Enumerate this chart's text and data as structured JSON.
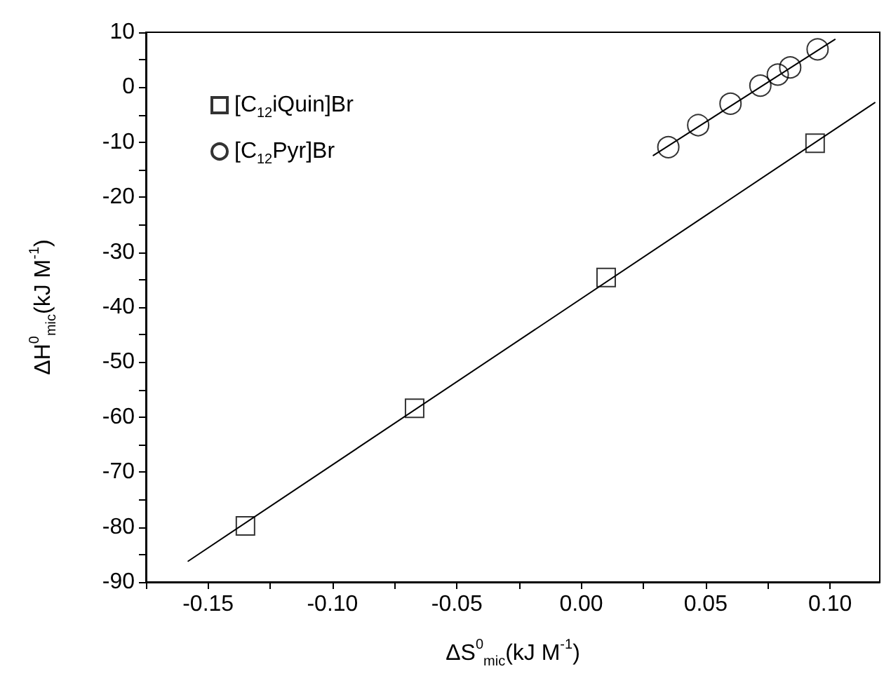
{
  "chart_data": {
    "type": "scatter",
    "xlabel": "ΔS$^{0}$$_{mic}$(kJ M$^{-1}$)",
    "ylabel": "ΔH$^{0}$$_{mic}$(kJ M$^{-1}$)",
    "xlim": [
      -0.175,
      0.12
    ],
    "xticks": [
      {
        "value": -0.175,
        "label": null
      },
      -0.15,
      {
        "value": -0.125,
        "label": null
      },
      {
        "value": -0.1,
        "label": "-0.10"
      },
      {
        "value": -0.075,
        "label": null
      },
      -0.05,
      {
        "value": -0.025,
        "label": null
      },
      {
        "value": 0,
        "label": "0.00"
      },
      {
        "value": 0.025,
        "label": null
      },
      0.05,
      {
        "value": 0.075,
        "label": null
      },
      {
        "value": 0.1,
        "label": "0.10"
      }
    ],
    "ylim": [
      -90,
      10
    ],
    "yticks": [
      -90,
      {
        "value": -85,
        "label": null
      },
      -80,
      {
        "value": -75,
        "label": null
      },
      -70,
      {
        "value": -65,
        "label": null
      },
      -60,
      {
        "value": -55,
        "label": null
      },
      -50,
      {
        "value": -45,
        "label": null
      },
      -40,
      {
        "value": -35,
        "label": null
      },
      -30,
      {
        "value": -25,
        "label": null
      },
      -20,
      {
        "value": -15,
        "label": null
      },
      -10,
      {
        "value": -5,
        "label": null
      },
      0,
      {
        "value": 5,
        "label": null
      },
      10
    ],
    "grid": false,
    "legend": "top left",
    "series": [
      {
        "name": "[C$_{12}$iQuin]Br",
        "color": "#000000",
        "marker": "square",
        "x": [
          -0.135,
          -0.067,
          0.01,
          0.094
        ],
        "values": [
          -79.8,
          -58.4,
          -34.6,
          -10.2
        ]
      },
      {
        "name": "[C$_{12}$Pyr]Br",
        "color": "#000000",
        "marker": "circle",
        "x": [
          0.035,
          0.047,
          0.06,
          0.072,
          0.079,
          0.084,
          0.095
        ],
        "values": [
          -10.9,
          -6.9,
          -3.0,
          0.3,
          2.3,
          3.6,
          6.9
        ]
      },
      {
        "type": "line",
        "color": "#000000",
        "marker": "none",
        "line_style": "solid",
        "x": [
          -0.158,
          0.118
        ],
        "values": [
          -86.2,
          -2.8
        ]
      },
      {
        "type": "line",
        "color": "#000000",
        "marker": "none",
        "line_style": "solid",
        "x": [
          0.029,
          0.102
        ],
        "values": [
          -12.4,
          8.7
        ]
      }
    ]
  }
}
